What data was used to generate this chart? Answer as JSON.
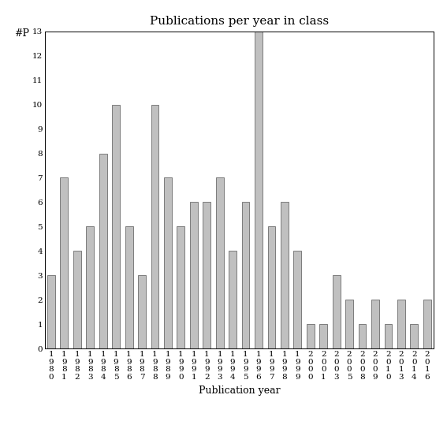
{
  "title": "Publications per year in class",
  "xlabel": "Publication year",
  "ylabel": "#P",
  "categories": [
    "1980",
    "1981",
    "1982",
    "1983",
    "1984",
    "1985",
    "1986",
    "1987",
    "1988",
    "1989",
    "1990",
    "1991",
    "1992",
    "1993",
    "1994",
    "1995",
    "1996",
    "1997",
    "1998",
    "1999",
    "2000",
    "2001",
    "2003",
    "2005",
    "2008",
    "2009",
    "2010",
    "2013",
    "2014",
    "2016"
  ],
  "values": [
    3,
    7,
    4,
    5,
    8,
    10,
    5,
    3,
    10,
    7,
    5,
    6,
    6,
    7,
    4,
    6,
    13,
    5,
    6,
    4,
    1,
    1,
    3,
    2,
    1,
    2,
    1,
    2,
    1,
    2
  ],
  "bar_color": "#c0c0c0",
  "bar_edgecolor": "#555555",
  "ylim": [
    0,
    13
  ],
  "yticks": [
    0,
    1,
    2,
    3,
    4,
    5,
    6,
    7,
    8,
    9,
    10,
    11,
    12,
    13
  ],
  "background_color": "#ffffff",
  "title_fontsize": 11,
  "label_fontsize": 9,
  "tick_fontsize": 7.5
}
